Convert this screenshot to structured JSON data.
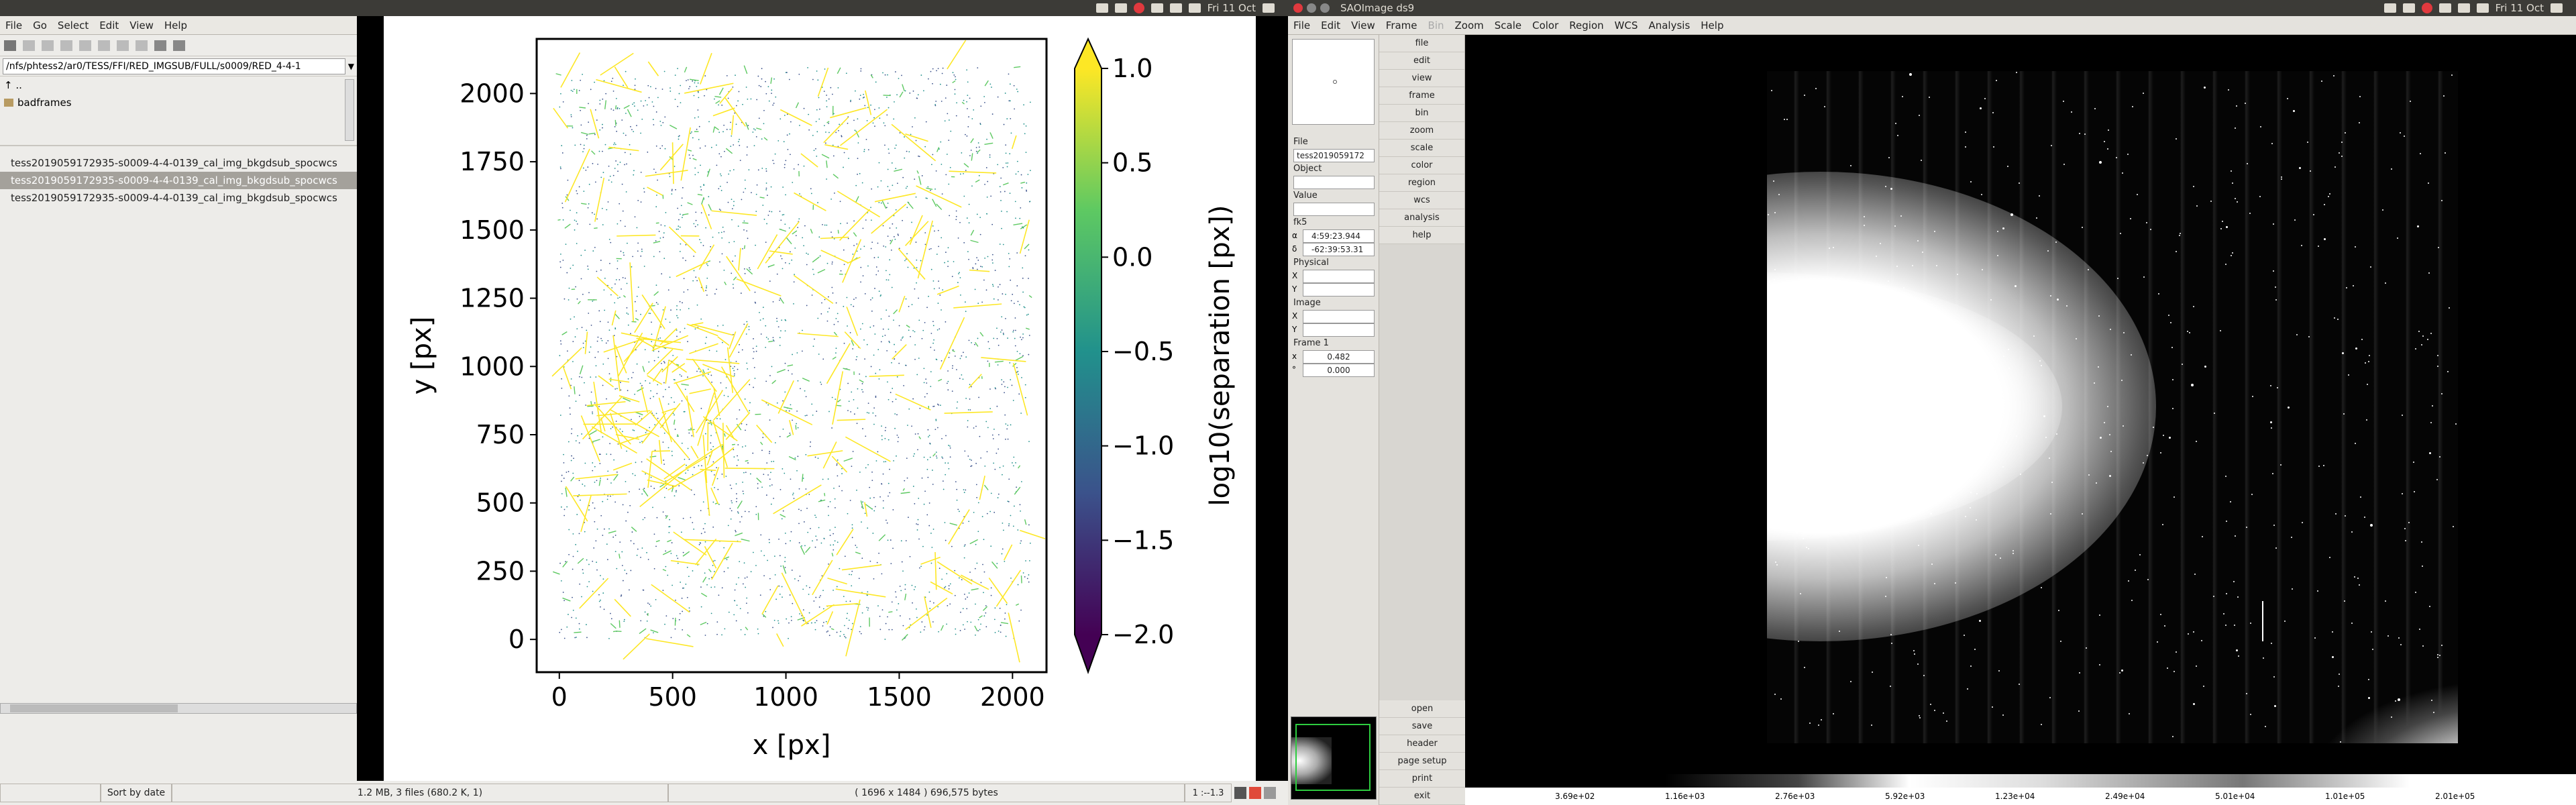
{
  "system": {
    "clock": "Fri 11 Oct",
    "ds9_title": "SAOImage ds9"
  },
  "filebrowser": {
    "menus": [
      "File",
      "Go",
      "Select",
      "Edit",
      "View",
      "Help"
    ],
    "path": "/nfs/phtess2/ar0/TESS/FFI/RED_IMGSUB/FULL/s0009/RED_4-4-1",
    "tree_parent": "..",
    "tree_folder": "badframes",
    "files": [
      "tess2019059172935-s0009-4-4-0139_cal_img_bkgdsub_spocwcs",
      "tess2019059172935-s0009-4-4-0139_cal_img_bkgdsub_spocwcs",
      "tess2019059172935-s0009-4-4-0139_cal_img_bkgdsub_spocwcs"
    ],
    "sort_label": "Sort by date",
    "summary": "1.2 MB, 3 files (680.2 K, 1)"
  },
  "viewer": {
    "info": "( 1696 x 1484 ) 696,575 bytes",
    "zoom": "1 :--1.3"
  },
  "chart_data": {
    "type": "scatter",
    "description_marks": "separation vectors colored by log10 separation",
    "xlabel": "x [px]",
    "ylabel": "y [px]",
    "xlim": [
      -100,
      2150
    ],
    "ylim": [
      -120,
      2200
    ],
    "xticks": [
      "0",
      "500",
      "1000",
      "1500",
      "2000"
    ],
    "yticks": [
      "0",
      "250",
      "500",
      "750",
      "1000",
      "1250",
      "1500",
      "1750",
      "2000"
    ],
    "colorbar": {
      "label": "log10(separation [px])",
      "range": [
        -2.0,
        1.0
      ],
      "ticks": [
        "1.0",
        "0.5",
        "0.0",
        "−0.5",
        "−1.0",
        "−1.5",
        "−2.0"
      ],
      "colormap": [
        "#fde725",
        "#5ec962",
        "#21918c",
        "#3b528b",
        "#440154"
      ]
    }
  },
  "ds9": {
    "menus": [
      "File",
      "Edit",
      "View",
      "Frame",
      "Bin",
      "Zoom",
      "Scale",
      "Color",
      "Region",
      "WCS",
      "Analysis",
      "Help"
    ],
    "file_label": "File",
    "file_value": "tess2019059172",
    "object_label": "Object",
    "value_label": "Value",
    "wcs_label": "fk5",
    "alpha_sym": "α",
    "alpha": "4:59:23.944",
    "delta_sym": "δ",
    "delta": "-62:39:53.31",
    "physical_label": "Physical",
    "image_label": "Image",
    "x_sym": "X",
    "y_sym": "Y",
    "frame_label": "Frame 1",
    "zoom_sym": "x",
    "angle_sym": "°",
    "frame_zoom": "0.482",
    "frame_angle": "0.000",
    "buttons": [
      "file",
      "edit",
      "view",
      "frame",
      "bin",
      "zoom",
      "scale",
      "color",
      "region",
      "wcs",
      "analysis",
      "help"
    ],
    "buttons2": [
      "open",
      "save",
      "header",
      "page setup",
      "print",
      "exit"
    ],
    "colorbar_ticks": [
      "3.69e+02",
      "1.16e+03",
      "2.76e+03",
      "5.92e+03",
      "1.23e+04",
      "2.49e+04",
      "5.01e+04",
      "1.01e+05",
      "2.01e+05"
    ]
  }
}
